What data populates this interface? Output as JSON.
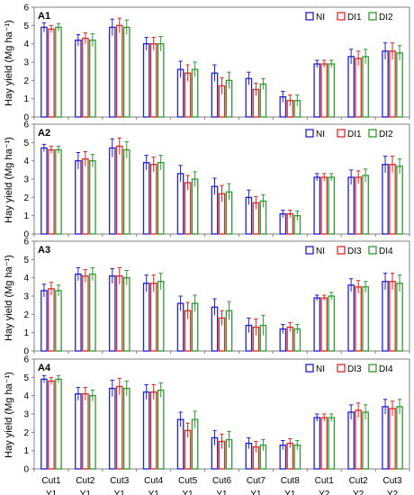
{
  "ylabel": "Hay yield (Mg ha⁻¹)",
  "colors": {
    "NI": "#1f1fd6",
    "DI_low": "#e0261f",
    "DI_high": "#2e9a2e",
    "axis": "#808080"
  },
  "x_categories": [
    {
      "cut": "Cut1",
      "year": "Y1"
    },
    {
      "cut": "Cut2",
      "year": "Y1"
    },
    {
      "cut": "Cut3",
      "year": "Y1"
    },
    {
      "cut": "Cut4",
      "year": "Y1"
    },
    {
      "cut": "Cut5",
      "year": "Y1"
    },
    {
      "cut": "Cut6",
      "year": "Y1"
    },
    {
      "cut": "Cut7",
      "year": "Y1"
    },
    {
      "cut": "Cut8",
      "year": "Y1"
    },
    {
      "cut": "Cut1",
      "year": "Y2"
    },
    {
      "cut": "Cut2",
      "year": "Y2"
    },
    {
      "cut": "Cut3",
      "year": "Y2"
    }
  ],
  "chart_data": [
    {
      "type": "bar",
      "panel_label": "A1",
      "ylim": [
        0,
        6
      ],
      "yticks": [
        "0",
        "1",
        "2",
        "3",
        "4",
        "5",
        "6"
      ],
      "legend_position": "top-right",
      "categories": [
        "Cut1 Y1",
        "Cut2 Y1",
        "Cut3 Y1",
        "Cut4 Y1",
        "Cut5 Y1",
        "Cut6 Y1",
        "Cut7 Y1",
        "Cut8 Y1",
        "Cut1 Y2",
        "Cut2 Y2",
        "Cut3 Y2"
      ],
      "series": [
        {
          "name": "NI",
          "values": [
            4.9,
            4.2,
            4.9,
            4.0,
            2.6,
            2.4,
            2.1,
            1.1,
            2.9,
            3.3,
            3.6
          ],
          "errors": [
            0.25,
            0.3,
            0.45,
            0.35,
            0.45,
            0.45,
            0.35,
            0.3,
            0.2,
            0.4,
            0.45
          ]
        },
        {
          "name": "DI1",
          "values": [
            4.8,
            4.3,
            5.0,
            4.0,
            2.4,
            1.7,
            1.5,
            0.9,
            2.9,
            3.2,
            3.6
          ],
          "errors": [
            0.2,
            0.3,
            0.4,
            0.35,
            0.45,
            0.45,
            0.35,
            0.3,
            0.2,
            0.4,
            0.45
          ]
        },
        {
          "name": "DI2",
          "values": [
            4.9,
            4.2,
            4.9,
            4.0,
            2.6,
            2.0,
            1.8,
            0.9,
            2.9,
            3.3,
            3.5
          ],
          "errors": [
            0.2,
            0.35,
            0.4,
            0.4,
            0.4,
            0.45,
            0.3,
            0.3,
            0.2,
            0.4,
            0.4
          ]
        }
      ]
    },
    {
      "type": "bar",
      "panel_label": "A2",
      "ylim": [
        0,
        6
      ],
      "yticks": [
        "0",
        "1",
        "2",
        "3",
        "4",
        "5",
        "6"
      ],
      "legend_position": "top-right",
      "categories": [
        "Cut1 Y1",
        "Cut2 Y1",
        "Cut3 Y1",
        "Cut4 Y1",
        "Cut5 Y1",
        "Cut6 Y1",
        "Cut7 Y1",
        "Cut8 Y1",
        "Cut1 Y2",
        "Cut2 Y2",
        "Cut3 Y2"
      ],
      "series": [
        {
          "name": "NI",
          "values": [
            4.7,
            4.0,
            4.7,
            3.9,
            3.3,
            2.6,
            2.0,
            1.1,
            3.1,
            3.1,
            3.8
          ],
          "errors": [
            0.2,
            0.45,
            0.5,
            0.4,
            0.45,
            0.45,
            0.4,
            0.2,
            0.2,
            0.4,
            0.45
          ]
        },
        {
          "name": "DI1",
          "values": [
            4.6,
            4.1,
            4.8,
            3.8,
            2.8,
            2.2,
            1.7,
            1.1,
            3.1,
            3.1,
            3.8
          ],
          "errors": [
            0.2,
            0.4,
            0.45,
            0.4,
            0.4,
            0.45,
            0.35,
            0.2,
            0.2,
            0.35,
            0.45
          ]
        },
        {
          "name": "DI2",
          "values": [
            4.6,
            4.0,
            4.6,
            3.9,
            3.0,
            2.3,
            1.8,
            1.0,
            3.1,
            3.2,
            3.7
          ],
          "errors": [
            0.2,
            0.35,
            0.45,
            0.4,
            0.4,
            0.45,
            0.35,
            0.25,
            0.2,
            0.35,
            0.4
          ]
        }
      ]
    },
    {
      "type": "bar",
      "panel_label": "A3",
      "ylim": [
        0,
        6
      ],
      "yticks": [
        "0",
        "1",
        "2",
        "3",
        "4",
        "5",
        "6"
      ],
      "legend_position": "top-right",
      "categories": [
        "Cut1 Y1",
        "Cut2 Y1",
        "Cut3 Y1",
        "Cut4 Y1",
        "Cut5 Y1",
        "Cut6 Y1",
        "Cut7 Y1",
        "Cut8 Y1",
        "Cut1 Y2",
        "Cut2 Y2",
        "Cut3 Y2"
      ],
      "series": [
        {
          "name": "NI",
          "values": [
            3.3,
            4.2,
            4.1,
            3.7,
            2.6,
            2.4,
            1.4,
            1.2,
            2.9,
            3.6,
            3.8
          ],
          "errors": [
            0.35,
            0.35,
            0.4,
            0.45,
            0.4,
            0.45,
            0.4,
            0.25,
            0.15,
            0.35,
            0.45
          ]
        },
        {
          "name": "DI3",
          "values": [
            3.4,
            4.1,
            4.1,
            3.7,
            2.2,
            1.8,
            1.3,
            1.3,
            2.9,
            3.5,
            3.8
          ],
          "errors": [
            0.35,
            0.35,
            0.45,
            0.45,
            0.45,
            0.4,
            0.45,
            0.25,
            0.15,
            0.35,
            0.45
          ]
        },
        {
          "name": "DI4",
          "values": [
            3.3,
            4.2,
            4.0,
            3.8,
            2.6,
            2.2,
            1.4,
            1.2,
            3.0,
            3.5,
            3.7
          ],
          "errors": [
            0.3,
            0.35,
            0.4,
            0.45,
            0.45,
            0.5,
            0.55,
            0.25,
            0.2,
            0.3,
            0.45
          ]
        }
      ]
    },
    {
      "type": "bar",
      "panel_label": "A4",
      "ylim": [
        0,
        6
      ],
      "yticks": [
        "0",
        "1",
        "2",
        "3",
        "4",
        "5",
        "6"
      ],
      "legend_position": "top-right",
      "categories": [
        "Cut1 Y1",
        "Cut2 Y1",
        "Cut3 Y1",
        "Cut4 Y1",
        "Cut5 Y1",
        "Cut6 Y1",
        "Cut7 Y1",
        "Cut8 Y1",
        "Cut1 Y2",
        "Cut2 Y2",
        "Cut3 Y2"
      ],
      "series": [
        {
          "name": "NI",
          "values": [
            4.9,
            4.1,
            4.4,
            4.2,
            2.7,
            1.7,
            1.4,
            1.3,
            2.8,
            3.1,
            3.4
          ],
          "errors": [
            0.2,
            0.35,
            0.45,
            0.4,
            0.4,
            0.4,
            0.3,
            0.25,
            0.2,
            0.4,
            0.4
          ]
        },
        {
          "name": "DI3",
          "values": [
            4.8,
            4.1,
            4.5,
            4.2,
            2.1,
            1.5,
            1.2,
            1.4,
            2.8,
            3.2,
            3.3
          ],
          "errors": [
            0.2,
            0.35,
            0.45,
            0.4,
            0.4,
            0.4,
            0.3,
            0.25,
            0.2,
            0.4,
            0.4
          ]
        },
        {
          "name": "DI4",
          "values": [
            4.9,
            4.0,
            4.4,
            4.3,
            2.7,
            1.6,
            1.3,
            1.3,
            2.8,
            3.1,
            3.4
          ],
          "errors": [
            0.2,
            0.3,
            0.4,
            0.4,
            0.45,
            0.45,
            0.3,
            0.25,
            0.2,
            0.4,
            0.4
          ]
        }
      ]
    }
  ]
}
